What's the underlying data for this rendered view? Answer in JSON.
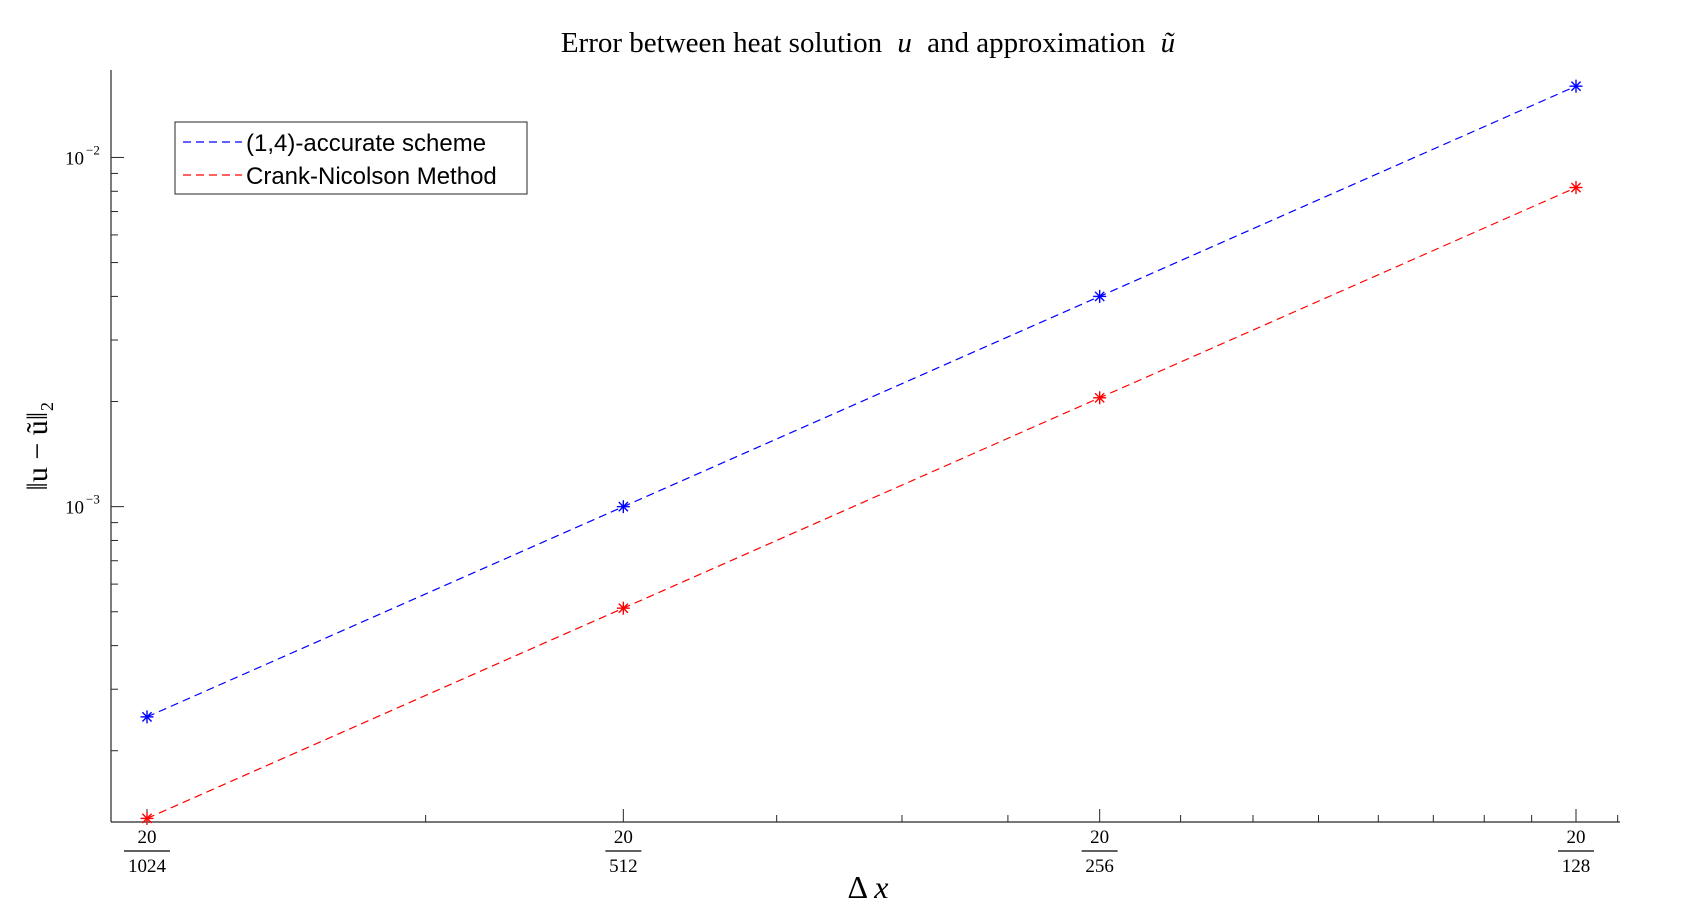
{
  "chart_data": {
    "type": "line",
    "title_parts": [
      "Error between heat solution",
      "u",
      "and approximation",
      "ũ"
    ],
    "xlabel_parts": [
      "Δ",
      "x"
    ],
    "ylabel": "‖u − ũ‖₂",
    "x_scale": "log2",
    "y_scale": "log10",
    "x": [
      0.01953125,
      0.0390625,
      0.078125,
      0.15625
    ],
    "x_tick_labels": [
      {
        "num": "20",
        "den": "1024"
      },
      {
        "num": "20",
        "den": "512"
      },
      {
        "num": "20",
        "den": "256"
      },
      {
        "num": "20",
        "den": "128"
      }
    ],
    "y_ticks": [
      {
        "value": 0.001,
        "base": "10",
        "exp": "−3"
      },
      {
        "value": 0.01,
        "base": "10",
        "exp": "−2"
      }
    ],
    "xlim": [
      0.01953125,
      0.168
    ],
    "ylim": [
      0.000125,
      0.0178
    ],
    "series": [
      {
        "name": "(1,4)-accurate scheme",
        "color": "#0000ff",
        "line_style": "dashed",
        "marker": "asterisk",
        "values": [
          0.00025,
          0.001,
          0.004,
          0.016
        ]
      },
      {
        "name": "Crank-Nicolson Method",
        "color": "#ff0000",
        "line_style": "dashed",
        "marker": "asterisk",
        "values": [
          0.000128,
          0.000512,
          0.00205,
          0.0082
        ]
      }
    ],
    "legend_position": "top-left",
    "grid": false
  }
}
